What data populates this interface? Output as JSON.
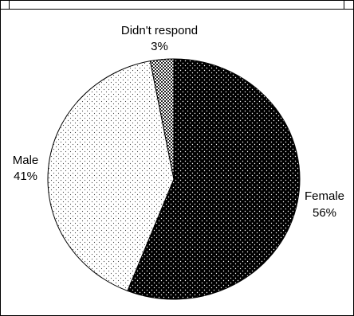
{
  "chart_data": {
    "type": "pie",
    "title": "",
    "slices": [
      {
        "label": "Female",
        "value": 56,
        "pct_label": "56%",
        "pattern": "dark-dotted"
      },
      {
        "label": "Male",
        "value": 41,
        "pct_label": "41%",
        "pattern": "light-dotted"
      },
      {
        "label": "Didn't respond",
        "value": 3,
        "pct_label": "3%",
        "pattern": "checkered"
      }
    ],
    "start_angle_deg": 0,
    "direction": "clockwise",
    "legend": "none",
    "colors": {
      "female": "#000000",
      "male": "#ffffff",
      "no_response": "#555555"
    }
  }
}
